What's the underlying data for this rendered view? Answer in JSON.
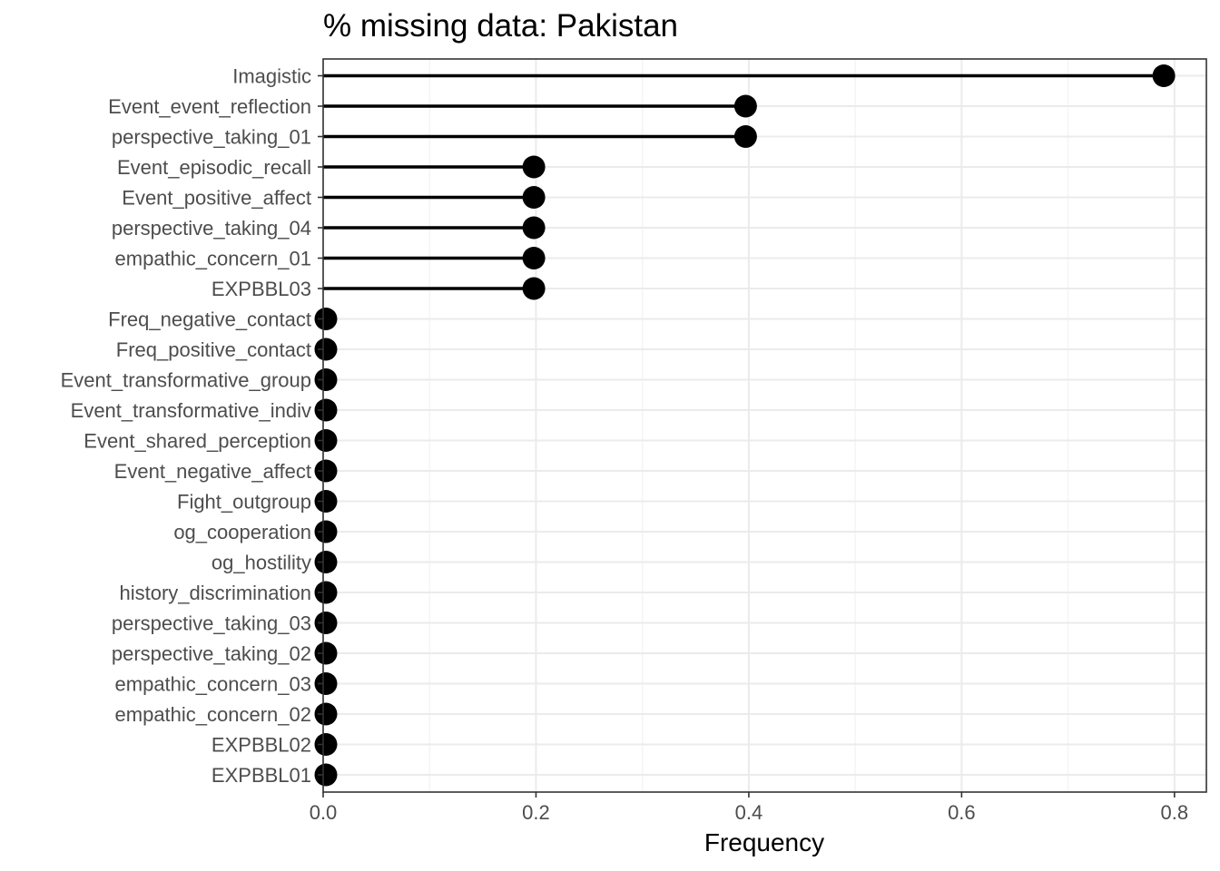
{
  "chart_data": {
    "type": "lollipop",
    "title": "% missing data: Pakistan",
    "xlabel": "Frequency",
    "ylabel": "",
    "xlim": [
      0,
      0.83
    ],
    "xticks": [
      0.0,
      0.2,
      0.4,
      0.6,
      0.8
    ],
    "xtick_labels": [
      "0.0",
      "0.2",
      "0.4",
      "0.6",
      "0.8"
    ],
    "grid": true,
    "categories": [
      "Imagistic",
      "Event_event_reflection",
      "perspective_taking_01",
      "Event_episodic_recall",
      "Event_positive_affect",
      "perspective_taking_04",
      "empathic_concern_01",
      "EXPBBL03",
      "Freq_negative_contact",
      "Freq_positive_contact",
      "Event_transformative_group",
      "Event_transformative_indiv",
      "Event_shared_perception",
      "Event_negative_affect",
      "Fight_outgroup",
      "og_cooperation",
      "og_hostility",
      "history_discrimination",
      "perspective_taking_03",
      "perspective_taking_02",
      "empathic_concern_03",
      "empathic_concern_02",
      "EXPBBL02",
      "EXPBBL01"
    ],
    "values": [
      0.79,
      0.397,
      0.397,
      0.198,
      0.198,
      0.198,
      0.198,
      0.198,
      0,
      0,
      0,
      0,
      0,
      0,
      0,
      0,
      0,
      0,
      0,
      0,
      0,
      0,
      0,
      0
    ]
  }
}
